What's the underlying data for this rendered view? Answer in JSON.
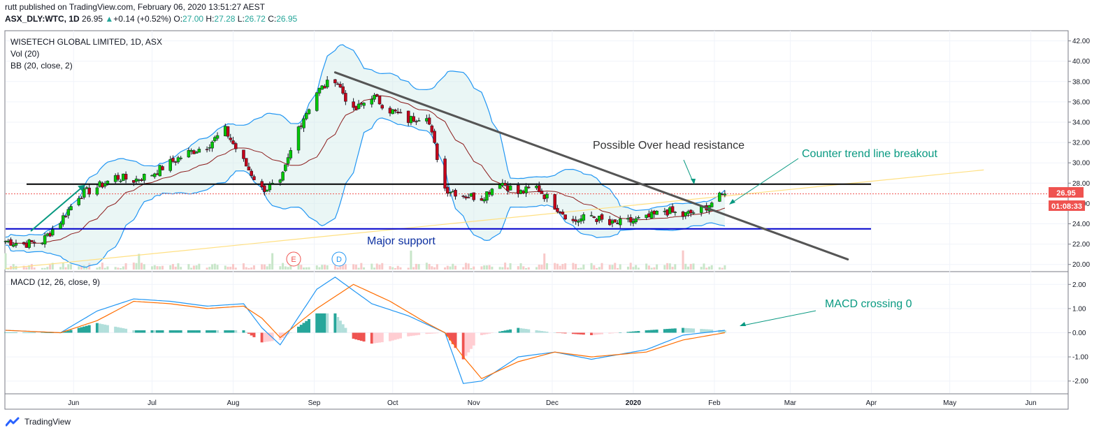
{
  "header": {
    "published": "rutt published on TradingView.com, February 06, 2020 13:51:27 AEST",
    "symbol": "ASX_DLY:WTC, 1D",
    "last": "26.95",
    "change": "+0.14 (+0.52%)",
    "o_label": "O:",
    "o": "27.00",
    "h_label": "H:",
    "h": "27.28",
    "l_label": "L:",
    "l": "26.72",
    "c_label": "C:",
    "c": "26.95"
  },
  "legend": {
    "title": "WISETECH GLOBAL LIMITED, 1D, ASX",
    "vol": "Vol (20)",
    "bb": "BB (20, close, 2)",
    "macd": "MACD (12, 26, close, 9)"
  },
  "price_badge": "26.95",
  "timer_badge": "01:08:33",
  "annotations": {
    "resistance": "Possible Over head resistance",
    "breakout": "Counter trend line breakout",
    "support": "Major support",
    "macd": "MACD crossing 0",
    "earnings": "E",
    "dividend": "D"
  },
  "footer": {
    "brand": "TradingView"
  },
  "colors": {
    "up": "#26a69a",
    "down": "#ef5350",
    "bull": "#00c805",
    "bear": "#c4001a",
    "bb": "#2196f3",
    "basis": "#8b1a1a",
    "macd": "#2196f3",
    "signal": "#ff6d00",
    "trend": "#555555",
    "support": "#0000cc",
    "resistance": "#000000",
    "counter": "#ffe083",
    "annotation_green": "#089981"
  },
  "chart_data": [
    {
      "type": "candlestick",
      "title": "WISETECH GLOBAL LIMITED, 1D, ASX",
      "ylim": [
        19.5,
        43
      ],
      "y_ticks": [
        "42.00",
        "40.00",
        "38.00",
        "36.00",
        "34.00",
        "32.00",
        "30.00",
        "28.00",
        "26.00",
        "24.00",
        "22.00",
        "20.00"
      ],
      "x_ticks": [
        "Jun",
        "Jul",
        "Aug",
        "Sep",
        "Oct",
        "Nov",
        "Dec",
        "2020",
        "Feb",
        "Mar",
        "Apr",
        "May",
        "Jun"
      ],
      "close_path": [
        [
          "2019-05-06",
          22.3
        ],
        [
          "2019-05-13",
          22.0
        ],
        [
          "2019-05-20",
          22.3
        ],
        [
          "2019-05-27",
          24.3
        ],
        [
          "2019-06-03",
          26.8
        ],
        [
          "2019-06-10",
          27.6
        ],
        [
          "2019-06-17",
          28.6
        ],
        [
          "2019-06-24",
          28.3
        ],
        [
          "2019-07-01",
          28.9
        ],
        [
          "2019-07-08",
          30.0
        ],
        [
          "2019-07-15",
          31.0
        ],
        [
          "2019-07-22",
          31.7
        ],
        [
          "2019-07-29",
          33.2
        ],
        [
          "2019-08-05",
          30.1
        ],
        [
          "2019-08-12",
          27.4
        ],
        [
          "2019-08-19",
          27.9
        ],
        [
          "2019-08-26",
          33.5
        ],
        [
          "2019-09-02",
          37.0
        ],
        [
          "2019-09-09",
          38.3
        ],
        [
          "2019-09-16",
          35.0
        ],
        [
          "2019-09-23",
          36.6
        ],
        [
          "2019-09-30",
          35.2
        ],
        [
          "2019-10-07",
          34.2
        ],
        [
          "2019-10-14",
          34.8
        ],
        [
          "2019-10-21",
          27.5
        ],
        [
          "2019-10-28",
          26.8
        ],
        [
          "2019-11-04",
          26.6
        ],
        [
          "2019-11-11",
          28.2
        ],
        [
          "2019-11-18",
          27.0
        ],
        [
          "2019-11-25",
          27.6
        ],
        [
          "2019-12-02",
          25.8
        ],
        [
          "2019-12-09",
          24.2
        ],
        [
          "2019-12-16",
          24.8
        ],
        [
          "2019-12-23",
          23.9
        ],
        [
          "2020-01-06",
          24.5
        ],
        [
          "2020-01-13",
          25.3
        ],
        [
          "2020-01-20",
          24.8
        ],
        [
          "2020-01-27",
          25.4
        ],
        [
          "2020-02-05",
          26.95
        ]
      ],
      "lines": {
        "resistance": 27.9,
        "support": 23.5,
        "downtrend": [
          [
            "2019-09-09",
            38.9
          ],
          [
            "2020-03-23",
            20.5
          ]
        ],
        "counter_trend": [
          [
            "2019-05-06",
            19.6
          ],
          [
            "2020-05-14",
            29.3
          ]
        ]
      }
    },
    {
      "type": "line",
      "title": "MACD (12, 26, close, 9)",
      "ylim": [
        -2.5,
        2.5
      ],
      "y_ticks": [
        "2.00",
        "1.00",
        "0.00",
        "-1.00",
        "-2.00"
      ],
      "series": [
        {
          "points": [
            [
              "2019-05-06",
              0.1
            ],
            [
              "2019-05-27",
              0.0
            ],
            [
              "2019-06-10",
              0.9
            ],
            [
              "2019-06-24",
              1.4
            ],
            [
              "2019-07-08",
              1.3
            ],
            [
              "2019-07-22",
              1.1
            ],
            [
              "2019-08-05",
              1.2
            ],
            [
              "2019-08-12",
              0.2
            ],
            [
              "2019-08-19",
              -0.5
            ],
            [
              "2019-09-02",
              1.8
            ],
            [
              "2019-09-09",
              2.3
            ],
            [
              "2019-09-23",
              1.2
            ],
            [
              "2019-10-07",
              0.7
            ],
            [
              "2019-10-21",
              0.0
            ],
            [
              "2019-10-28",
              -2.1
            ],
            [
              "2019-11-04",
              -2.0
            ],
            [
              "2019-11-18",
              -1.0
            ],
            [
              "2019-12-02",
              -0.8
            ],
            [
              "2019-12-16",
              -1.1
            ],
            [
              "2020-01-06",
              -0.7
            ],
            [
              "2020-01-20",
              -0.1
            ],
            [
              "2020-02-05",
              0.1
            ]
          ]
        },
        {
          "points": [
            [
              "2019-05-06",
              0.1
            ],
            [
              "2019-05-27",
              0.0
            ],
            [
              "2019-06-10",
              0.5
            ],
            [
              "2019-06-24",
              1.3
            ],
            [
              "2019-07-08",
              1.2
            ],
            [
              "2019-07-22",
              1.0
            ],
            [
              "2019-08-05",
              1.1
            ],
            [
              "2019-08-12",
              0.6
            ],
            [
              "2019-08-19",
              -0.2
            ],
            [
              "2019-09-02",
              1.0
            ],
            [
              "2019-09-16",
              2.0
            ],
            [
              "2019-09-30",
              1.3
            ],
            [
              "2019-10-14",
              0.4
            ],
            [
              "2019-10-21",
              0.0
            ],
            [
              "2019-10-28",
              -1.0
            ],
            [
              "2019-11-04",
              -1.9
            ],
            [
              "2019-11-18",
              -1.2
            ],
            [
              "2019-12-02",
              -0.8
            ],
            [
              "2019-12-16",
              -1.0
            ],
            [
              "2020-01-06",
              -0.8
            ],
            [
              "2020-01-20",
              -0.3
            ],
            [
              "2020-02-05",
              0.0
            ]
          ]
        }
      ]
    }
  ]
}
